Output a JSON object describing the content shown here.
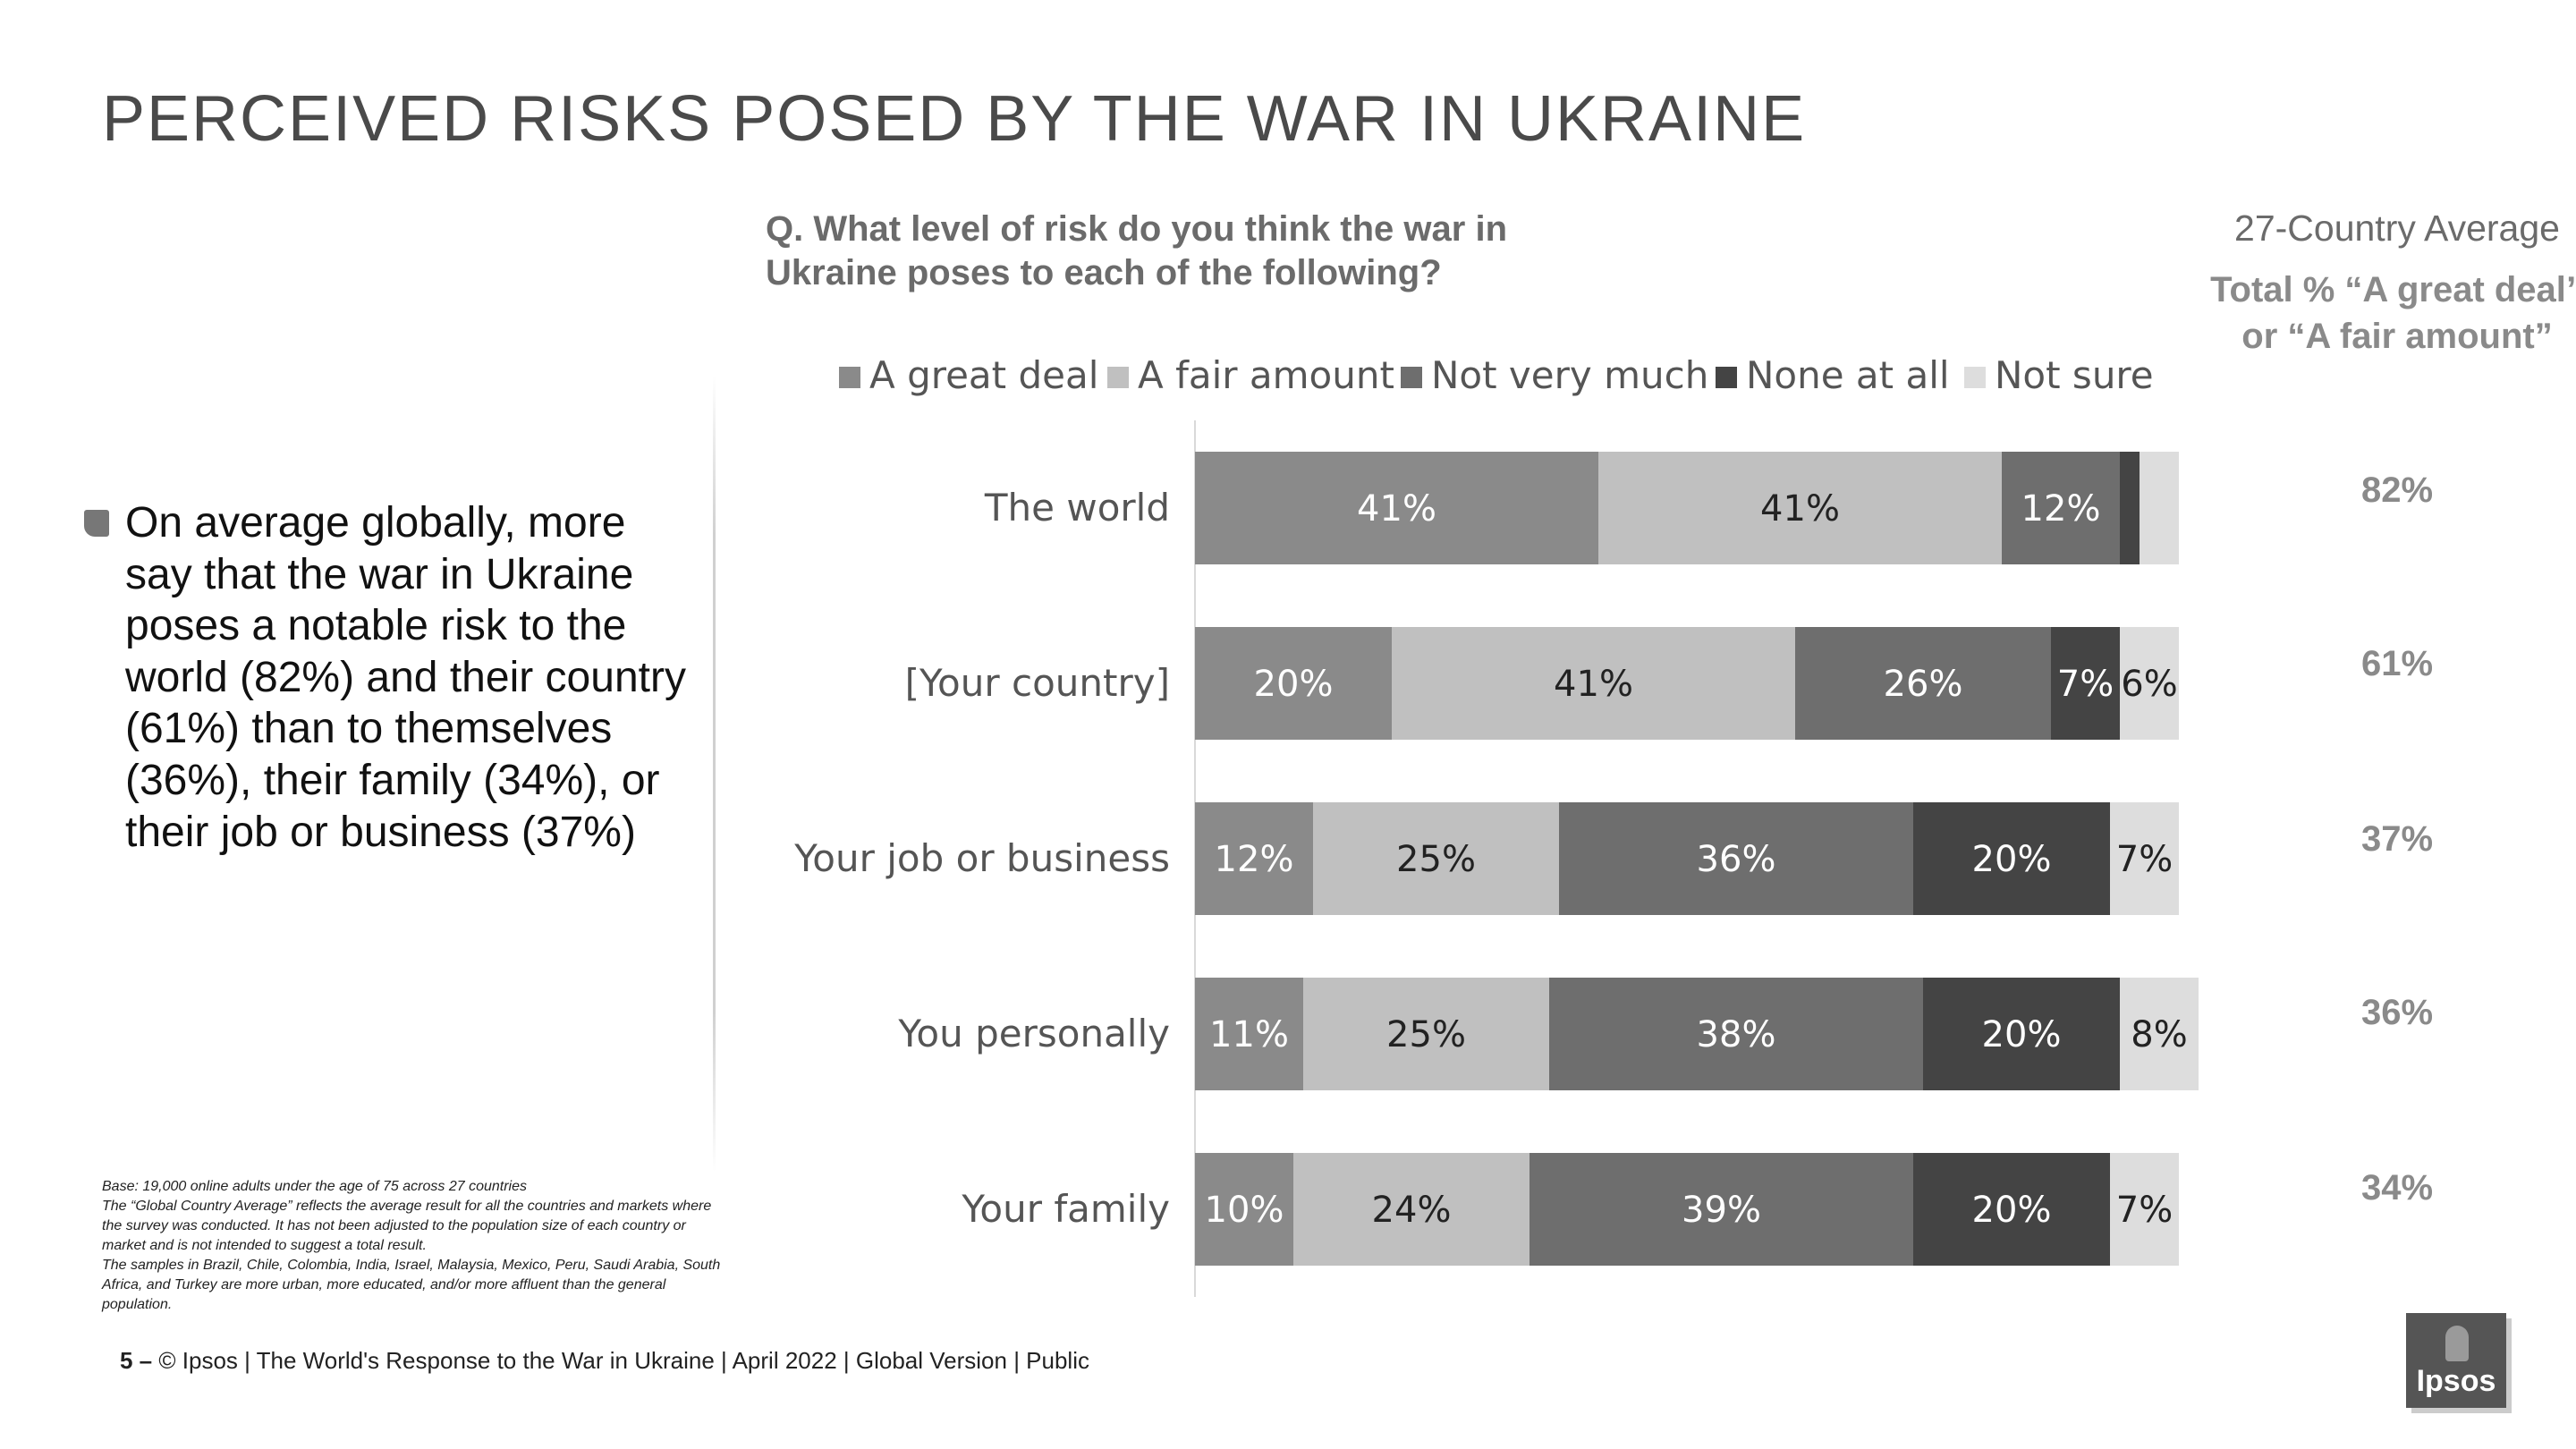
{
  "title": "PERCEIVED RISKS POSED BY THE WAR IN UKRAINE",
  "question": "Q. What level of risk do you think the war in Ukraine poses to each of the following?",
  "side_panel": {
    "heading": "27-Country Average",
    "subheading": "Total % “A great deal” or “A fair amount”",
    "values": [
      "82%",
      "61%",
      "37%",
      "36%",
      "34%"
    ]
  },
  "bullet_text": "On average globally, more say that the war in Ukraine poses a notable risk to the world (82%) and their country (61%) than to themselves (36%), their family (34%), or their job or business (37%)",
  "footnote": {
    "line1": "Base: 19,000 online adults under the age of 75 across 27 countries",
    "line2": "The “Global Country Average” reflects the average result for all the countries and markets where the survey was conducted. It has not been adjusted to the population size of each country or market and is not intended to suggest a total result.",
    "line3": "The samples in Brazil, Chile, Colombia, India, Israel, Malaysia, Mexico, Peru, Saudi Arabia, South Africa, and Turkey are more urban, more educated, and/or more affluent than the general population."
  },
  "footer": {
    "page_number": "5 –",
    "text": "© Ipsos | The World's Response to the War in Ukraine | April 2022 | Global Version | Public"
  },
  "logo_text": "Ipsos",
  "chart_data": {
    "type": "bar",
    "orientation": "horizontal",
    "stacked": true,
    "categories": [
      "The world",
      "[Your country]",
      "Your job or business",
      "You personally",
      "Your family"
    ],
    "series": [
      {
        "name": "A great deal",
        "color": "#8a8a8a",
        "values": [
          41,
          20,
          12,
          11,
          10
        ],
        "labels": [
          "41%",
          "20%",
          "12%",
          "11%",
          "10%"
        ],
        "label_color": "#ffffff"
      },
      {
        "name": "A fair amount",
        "color": "#c0c0c0",
        "values": [
          41,
          41,
          25,
          25,
          24
        ],
        "labels": [
          "41%",
          "41%",
          "25%",
          "25%",
          "24%"
        ],
        "label_color": "#222222"
      },
      {
        "name": "Not very much",
        "color": "#6e6e6e",
        "values": [
          12,
          26,
          36,
          38,
          39
        ],
        "labels": [
          "12%",
          "26%",
          "36%",
          "38%",
          "39%"
        ],
        "label_color": "#ffffff"
      },
      {
        "name": "None at all",
        "color": "#444444",
        "values": [
          2,
          7,
          20,
          20,
          20
        ],
        "labels": [
          "",
          "7%",
          "20%",
          "20%",
          "20%"
        ],
        "label_color": "#ffffff"
      },
      {
        "name": "Not sure",
        "color": "#dddddd",
        "values": [
          4,
          6,
          7,
          8,
          7
        ],
        "labels": [
          "",
          "6%",
          "7%",
          "8%",
          "7%"
        ],
        "label_color": "#222222"
      }
    ],
    "xlim": [
      0,
      100
    ],
    "legend_position": "top"
  }
}
